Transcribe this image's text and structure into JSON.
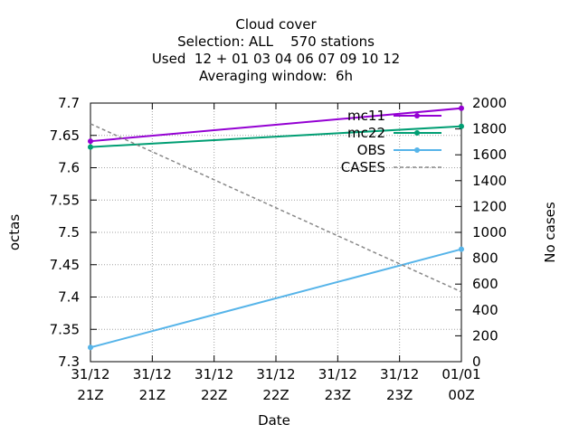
{
  "title_lines": [
    "Cloud cover",
    "Selection: ALL    570 stations",
    "Used  12 + 01 03 04 06 07 09 10 12",
    "Averaging window:  6h"
  ],
  "colors": {
    "mc11": "#9400d3",
    "mc22": "#009e73",
    "OBS": "#56b4e9",
    "CASES": "#888888",
    "grid": "#a0a0a0",
    "axis": "#000000"
  },
  "chart_data": {
    "type": "line",
    "xlabel": "Date",
    "ylabel": "octas",
    "y2label": "No cases",
    "ylim": [
      7.3,
      7.7
    ],
    "y2lim": [
      0,
      2000
    ],
    "yticks": [
      "7.3",
      "7.35",
      "7.4",
      "7.45",
      "7.5",
      "7.55",
      "7.6",
      "7.65",
      "7.7"
    ],
    "y2ticks": [
      "0",
      "200",
      "400",
      "600",
      "800",
      "1000",
      "1200",
      "1400",
      "1600",
      "1800",
      "2000"
    ],
    "xticks": [
      [
        "31/12",
        "21Z"
      ],
      [
        "31/12",
        "21Z"
      ],
      [
        "31/12",
        "22Z"
      ],
      [
        "31/12",
        "22Z"
      ],
      [
        "31/12",
        "23Z"
      ],
      [
        "31/12",
        "23Z"
      ],
      [
        "01/01",
        "00Z"
      ]
    ],
    "grid": true,
    "legend_position": "top-right",
    "series": [
      {
        "name": "mc11",
        "axis": "left",
        "x": [
          0,
          1
        ],
        "values": [
          7.641,
          7.692
        ],
        "marker": true
      },
      {
        "name": "mc22",
        "axis": "left",
        "x": [
          0,
          1
        ],
        "values": [
          7.632,
          7.664
        ],
        "marker": true
      },
      {
        "name": "OBS",
        "axis": "left",
        "x": [
          0,
          1
        ],
        "values": [
          7.322,
          7.474
        ],
        "marker": true
      },
      {
        "name": "CASES",
        "axis": "right",
        "x": [
          0,
          1
        ],
        "values": [
          1840,
          540
        ],
        "marker": false,
        "dashed": true
      }
    ]
  }
}
